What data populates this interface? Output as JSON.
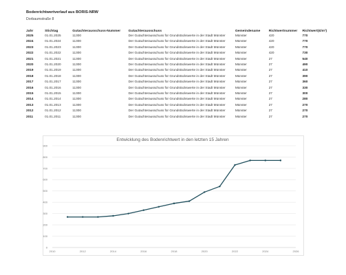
{
  "page": {
    "title": "Bodenrichtwertverlauf aus BORIS-NRW",
    "subtitle": "Dorbaumstraße 8"
  },
  "table": {
    "headers": [
      "Jahr",
      "Stichtag",
      "Gutachterausschuss-Nummer",
      "Gutachterausschuss",
      "Gemeindename",
      "Richtwertnummer",
      "Richtwert(€/m²)"
    ],
    "rows": [
      [
        "2025",
        "01.01.2025",
        "11300",
        "Der Gutachterausschuss für Grundstückswerte in der Stadt Münster",
        "Münster",
        "420",
        "770"
      ],
      [
        "2024",
        "01.01.2024",
        "11300",
        "Der Gutachterausschuss für Grundstückswerte in der Stadt Münster",
        "Münster",
        "420",
        "770"
      ],
      [
        "2023",
        "01.01.2023",
        "11300",
        "Der Gutachterausschuss für Grundstückswerte in der Stadt Münster",
        "Münster",
        "420",
        "770"
      ],
      [
        "2022",
        "01.01.2022",
        "11300",
        "Der Gutachterausschuss für Grundstückswerte in der Stadt Münster",
        "Münster",
        "420",
        "730"
      ],
      [
        "2021",
        "01.01.2021",
        "11300",
        "Der Gutachterausschuss für Grundstückswerte in der Stadt Münster",
        "Münster",
        "27",
        "540"
      ],
      [
        "2020",
        "01.01.2020",
        "11300",
        "Der Gutachterausschuss für Grundstückswerte in der Stadt Münster",
        "Münster",
        "27",
        "490"
      ],
      [
        "2019",
        "01.01.2019",
        "11300",
        "Der Gutachterausschuss für Grundstückswerte in der Stadt Münster",
        "Münster",
        "27",
        "410"
      ],
      [
        "2018",
        "01.01.2018",
        "11300",
        "Der Gutachterausschuss für Grundstückswerte in der Stadt Münster",
        "Münster",
        "27",
        "390"
      ],
      [
        "2017",
        "01.01.2017",
        "11300",
        "Der Gutachterausschuss für Grundstückswerte in der Stadt Münster",
        "Münster",
        "27",
        "360"
      ],
      [
        "2016",
        "01.01.2016",
        "11300",
        "Der Gutachterausschuss für Grundstückswerte in der Stadt Münster",
        "Münster",
        "27",
        "330"
      ],
      [
        "2015",
        "01.01.2015",
        "11300",
        "Der Gutachterausschuss für Grundstückswerte in der Stadt Münster",
        "Münster",
        "27",
        "300"
      ],
      [
        "2014",
        "01.01.2014",
        "11300",
        "Der Gutachterausschuss für Grundstückswerte in der Stadt Münster",
        "Münster",
        "27",
        "280"
      ],
      [
        "2013",
        "01.01.2013",
        "11300",
        "Der Gutachterausschuss für Grundstückswerte in der Stadt Münster",
        "Münster",
        "27",
        "270"
      ],
      [
        "2012",
        "01.01.2012",
        "11300",
        "Der Gutachterausschuss für Grundstückswerte in der Stadt Münster",
        "Münster",
        "27",
        "270"
      ],
      [
        "2011",
        "01.01.2011",
        "11300",
        "Der Gutachterausschuss für Grundstückswerte in der Stadt Münster",
        "Münster",
        "27",
        "270"
      ]
    ]
  },
  "chart_data": {
    "type": "line",
    "title": "Entwicklung des Bodenrichtwert in den letzten 15 Jahren",
    "x": [
      2011,
      2012,
      2013,
      2014,
      2015,
      2016,
      2017,
      2018,
      2019,
      2020,
      2021,
      2022,
      2023,
      2024,
      2025
    ],
    "series": [
      {
        "values": [
          270,
          270,
          270,
          280,
          300,
          330,
          360,
          390,
          410,
          490,
          540,
          730,
          770,
          770,
          770
        ]
      }
    ],
    "xticks": [
      2010,
      2012,
      2014,
      2016,
      2018,
      2020,
      2022,
      2024,
      2026
    ],
    "yticks": [
      0,
      100,
      200,
      300,
      400,
      500,
      600,
      700,
      800,
      900
    ],
    "xlim": [
      2010,
      2026
    ],
    "ylim": [
      0,
      900
    ],
    "grid": true,
    "line_color": "#1f4e5c"
  }
}
